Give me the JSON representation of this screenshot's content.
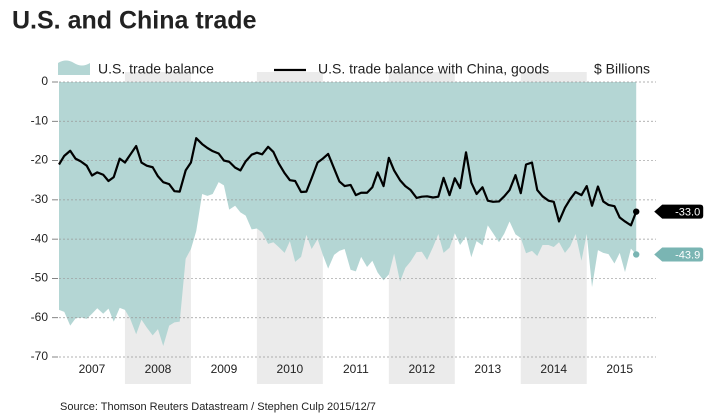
{
  "chart_data": {
    "type": "line",
    "title": "U.S. and China trade",
    "unit_label": "$ Billions",
    "source": "Source: Thomson Reuters Datastream / Stephen Culp 2015/12/7",
    "xlim": [
      2007,
      2016.05
    ],
    "xticks": [
      {
        "value": 2007.5,
        "label": "2007"
      },
      {
        "value": 2008.5,
        "label": "2008"
      },
      {
        "value": 2009.5,
        "label": "2009"
      },
      {
        "value": 2010.5,
        "label": "2010"
      },
      {
        "value": 2011.5,
        "label": "2011"
      },
      {
        "value": 2012.5,
        "label": "2012"
      },
      {
        "value": 2013.5,
        "label": "2013"
      },
      {
        "value": 2014.5,
        "label": "2014"
      },
      {
        "value": 2015.5,
        "label": "2015"
      }
    ],
    "ylim": [
      -70,
      0
    ],
    "yticks": [
      0,
      -10,
      -20,
      -30,
      -40,
      -50,
      -60,
      -70
    ],
    "grid": true,
    "alternate_year_shading": "#ebebeb",
    "x": [
      2007,
      2007.08,
      2007.17,
      2007.25,
      2007.33,
      2007.42,
      2007.5,
      2007.58,
      2007.67,
      2007.75,
      2007.83,
      2007.92,
      2008,
      2008.08,
      2008.17,
      2008.25,
      2008.33,
      2008.42,
      2008.5,
      2008.58,
      2008.67,
      2008.75,
      2008.83,
      2008.92,
      2009,
      2009.08,
      2009.17,
      2009.25,
      2009.33,
      2009.42,
      2009.5,
      2009.58,
      2009.67,
      2009.75,
      2009.83,
      2009.92,
      2010,
      2010.08,
      2010.17,
      2010.25,
      2010.33,
      2010.42,
      2010.5,
      2010.58,
      2010.67,
      2010.75,
      2010.83,
      2010.92,
      2011,
      2011.08,
      2011.17,
      2011.25,
      2011.33,
      2011.42,
      2011.5,
      2011.58,
      2011.67,
      2011.75,
      2011.83,
      2011.92,
      2012,
      2012.08,
      2012.17,
      2012.25,
      2012.33,
      2012.42,
      2012.5,
      2012.58,
      2012.67,
      2012.75,
      2012.83,
      2012.92,
      2013,
      2013.08,
      2013.17,
      2013.25,
      2013.33,
      2013.42,
      2013.5,
      2013.58,
      2013.67,
      2013.75,
      2013.83,
      2013.92,
      2014,
      2014.08,
      2014.17,
      2014.25,
      2014.33,
      2014.42,
      2014.5,
      2014.58,
      2014.67,
      2014.75,
      2014.83,
      2014.92,
      2015,
      2015.08,
      2015.17,
      2015.25,
      2015.33,
      2015.42,
      2015.5,
      2015.58,
      2015.67,
      2015.75
    ],
    "series": [
      {
        "name": "U.S. trade balance",
        "style": "area",
        "color": "#b4d6d4",
        "label_color": "#7ab5b3",
        "last_label": "-43.9",
        "values": [
          -58,
          -58.5,
          -62,
          -60.2,
          -59.9,
          -60.3,
          -59,
          -57.6,
          -59,
          -57.7,
          -61,
          -57.5,
          -58,
          -60.3,
          -64.2,
          -60.5,
          -62.5,
          -64.5,
          -62.9,
          -67.2,
          -62,
          -61.2,
          -61,
          -45,
          -42.5,
          -38,
          -28.5,
          -29,
          -28.5,
          -25.5,
          -26.3,
          -32.5,
          -31.5,
          -33.2,
          -34,
          -37.5,
          -37.3,
          -38.3,
          -41.2,
          -40.8,
          -42,
          -43.5,
          -40.5,
          -45.8,
          -44.5,
          -38.9,
          -42.5,
          -40,
          -44,
          -47.5,
          -44,
          -43,
          -42.5,
          -47.8,
          -48.2,
          -44.5,
          -47.1,
          -45.5,
          -48.5,
          -50.5,
          -49,
          -43.7,
          -50.8,
          -47.3,
          -45.7,
          -43.3,
          -43.2,
          -45.3,
          -42,
          -38.7,
          -43.5,
          -42.2,
          -38.5,
          -41.5,
          -39.3,
          -44.6,
          -40.5,
          -41.6,
          -36.5,
          -38.5,
          -40.8,
          -38.6,
          -35.5,
          -38.8,
          -39.7,
          -43.6,
          -43,
          -44.3,
          -41.5,
          -41.5,
          -42,
          -40.8,
          -43.5,
          -41.8,
          -38.7,
          -45.5,
          -38.7,
          -52.2,
          -42.8,
          -43.5,
          -43.8,
          -46.2,
          -43.5,
          -48.4,
          -42.4,
          -43.9
        ]
      },
      {
        "name": "U.S. trade balance with China, goods",
        "style": "line",
        "color": "#000000",
        "label_color": "#000000",
        "last_label": "-33.0",
        "values": [
          -21,
          -18.8,
          -17.5,
          -19.5,
          -20.2,
          -21.3,
          -23.8,
          -23,
          -23.6,
          -25.2,
          -24.2,
          -19.5,
          -20.5,
          -18.5,
          -16.3,
          -20.5,
          -21.3,
          -21.7,
          -24,
          -25.5,
          -26,
          -27.8,
          -27.9,
          -22.5,
          -20.5,
          -14.3,
          -15.8,
          -16.8,
          -17.6,
          -18.2,
          -20,
          -20.3,
          -21.8,
          -22.5,
          -20.2,
          -18.5,
          -18,
          -18.4,
          -16.5,
          -17.8,
          -20.7,
          -23.2,
          -25,
          -25.2,
          -28,
          -27.9,
          -24.5,
          -20.5,
          -19.5,
          -18.3,
          -22,
          -25.3,
          -26.5,
          -26.2,
          -28.8,
          -28.2,
          -28.2,
          -26.8,
          -23,
          -26.5,
          -19.3,
          -22.5,
          -25,
          -26.5,
          -27.5,
          -29.5,
          -29.2,
          -29.1,
          -29.4,
          -29.2,
          -24.4,
          -28.8,
          -24.5,
          -27,
          -17.9,
          -25.6,
          -28.5,
          -26.8,
          -30.2,
          -30.5,
          -30.4,
          -29.1,
          -27.5,
          -23.7,
          -28.3,
          -21,
          -20.5,
          -27.5,
          -29.1,
          -30.2,
          -30.5,
          -35.5,
          -32,
          -29.8,
          -28,
          -28.8,
          -26.5,
          -31.5,
          -26.6,
          -30.4,
          -31.3,
          -31.6,
          -34.5,
          -35.5,
          -36.5,
          -33
        ]
      }
    ]
  }
}
